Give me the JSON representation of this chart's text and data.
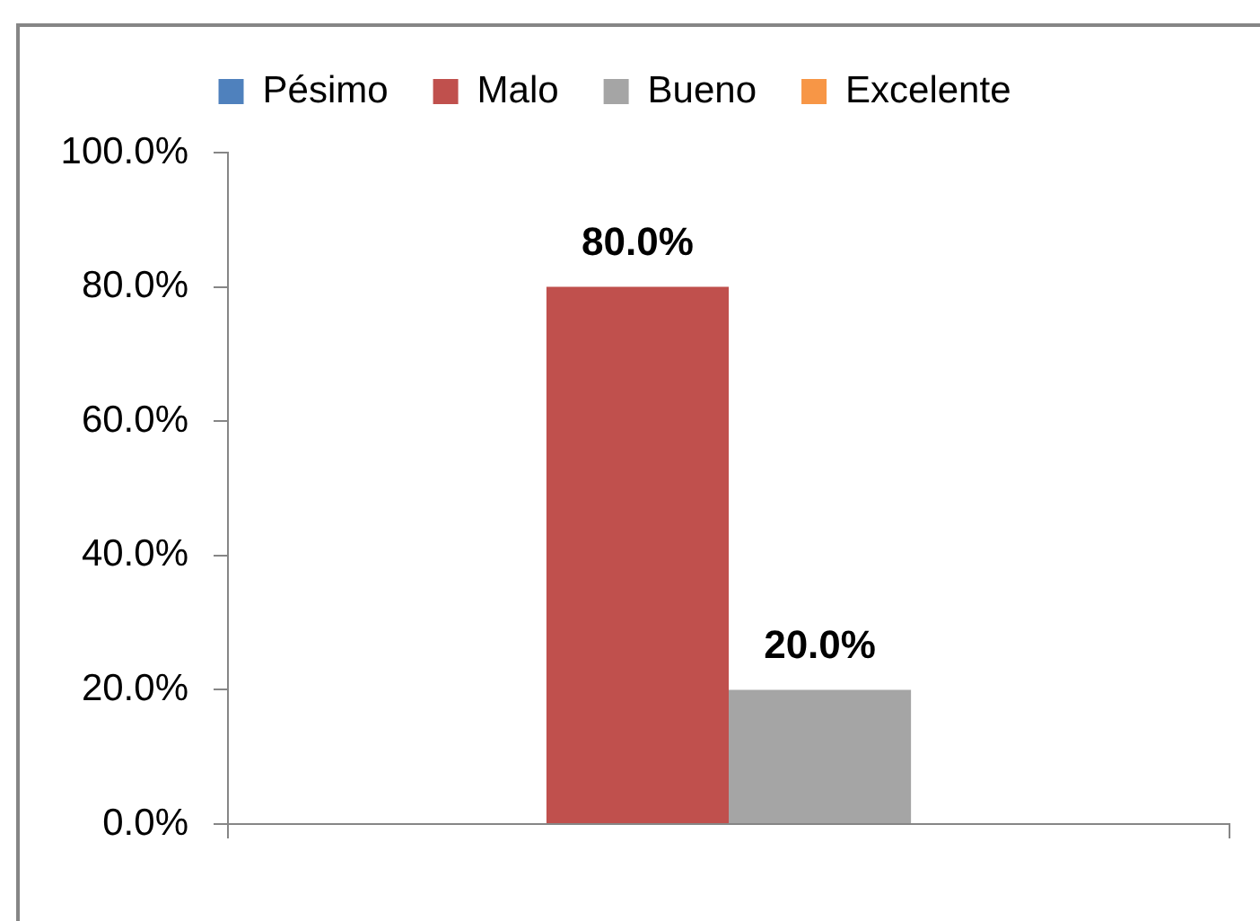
{
  "chart_data": {
    "type": "bar",
    "categories": [
      null
    ],
    "series": [
      {
        "name": "Pésimo",
        "color": "#4f81bd",
        "values": [
          0
        ],
        "value_labels": [
          null
        ]
      },
      {
        "name": "Malo",
        "color": "#c0504d",
        "values": [
          80
        ],
        "value_labels": [
          "80.0%"
        ]
      },
      {
        "name": "Bueno",
        "color": "#a5a5a5",
        "values": [
          20
        ],
        "value_labels": [
          "20.0%"
        ]
      },
      {
        "name": "Excelente",
        "color": "#f79646",
        "values": [
          0
        ],
        "value_labels": [
          null
        ]
      }
    ],
    "ylim": [
      0,
      100
    ],
    "yticks": [
      {
        "value": 0,
        "label": "0.0%"
      },
      {
        "value": 20,
        "label": "20.0%"
      },
      {
        "value": 40,
        "label": "40.0%"
      },
      {
        "value": 60,
        "label": "60.0%"
      },
      {
        "value": 80,
        "label": "80.0%"
      },
      {
        "value": 100,
        "label": "100.0%"
      }
    ],
    "grid": false,
    "legend": "top"
  }
}
